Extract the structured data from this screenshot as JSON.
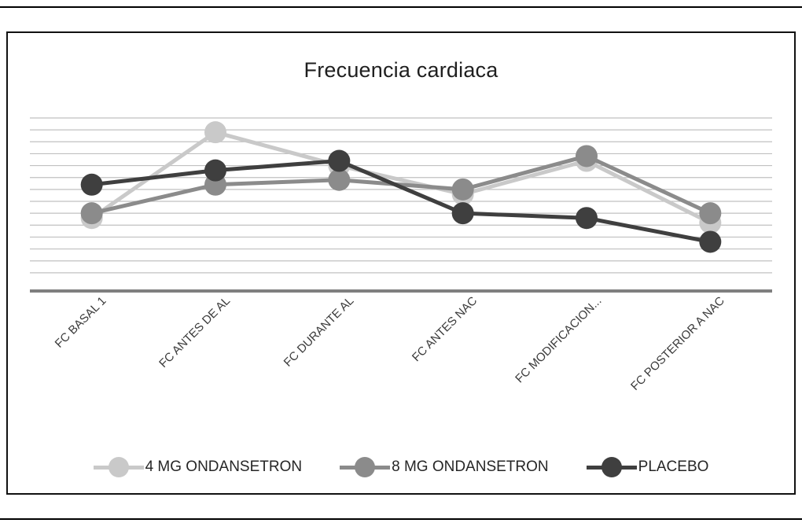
{
  "chart_data": {
    "type": "line",
    "title": "Frecuencia cardiaca",
    "categories": [
      "FC BASAL 1",
      "FC ANTES DE AL",
      "FC DURANTE AL",
      "FC ANTES NAC",
      "FC MODIFICACION...",
      "FC POSTERIOR A NAC"
    ],
    "series": [
      {
        "name": "4 MG ONDANSETRON",
        "color": "#c9c9c9",
        "values": [
          69,
          87,
          80,
          74,
          81,
          68
        ]
      },
      {
        "name": "8 MG ONDANSETRON",
        "color": "#8b8b8b",
        "values": [
          70,
          76,
          77,
          75,
          82,
          70
        ]
      },
      {
        "name": "PLACEBO",
        "color": "#3f3f3f",
        "values": [
          76,
          79,
          81,
          70,
          69,
          64
        ]
      }
    ],
    "ylim": [
      55,
      90
    ],
    "grid_step": 2.5,
    "grid": true,
    "grid_color": "#c0c0c0",
    "axis_color": "#7f7f7f",
    "y_axis_labels_visible": false,
    "legend_position": "bottom"
  }
}
